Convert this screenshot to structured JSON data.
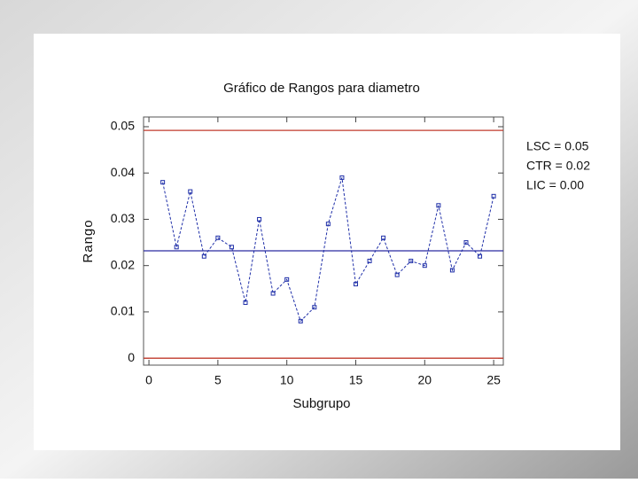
{
  "chart_data": {
    "type": "line",
    "title": "Gráfico de Rangos para diametro",
    "x_label": "Subgrupo",
    "y_label": "Rango",
    "x": [
      1,
      2,
      3,
      4,
      5,
      6,
      7,
      8,
      9,
      10,
      11,
      12,
      13,
      14,
      15,
      16,
      17,
      18,
      19,
      20,
      21,
      22,
      23,
      24,
      25
    ],
    "series": [
      {
        "name": "Rango",
        "color": "#1f2fa8",
        "values": [
          0.038,
          0.024,
          0.036,
          0.022,
          0.026,
          0.024,
          0.012,
          0.03,
          0.014,
          0.017,
          0.008,
          0.011,
          0.029,
          0.039,
          0.016,
          0.021,
          0.026,
          0.018,
          0.021,
          0.02,
          0.033,
          0.019,
          0.025,
          0.022,
          0.035
        ]
      }
    ],
    "control_lines": [
      {
        "value": 0.0492,
        "color": "#c0392b",
        "label": "LSC = 0.05"
      },
      {
        "value": 0.0232,
        "color": "#2a2aa0",
        "label": "CTR = 0.02"
      },
      {
        "value": 0,
        "color": "#c0392b",
        "label": "LIC = 0.00"
      }
    ],
    "xlim": [
      -0.39,
      25.7
    ],
    "xticks": [
      0,
      5,
      10,
      15,
      20,
      25
    ],
    "ylim": [
      -0.0015,
      0.0521
    ],
    "yticks": [
      0,
      0.01,
      0.02,
      0.03,
      0.04,
      0.05
    ]
  }
}
